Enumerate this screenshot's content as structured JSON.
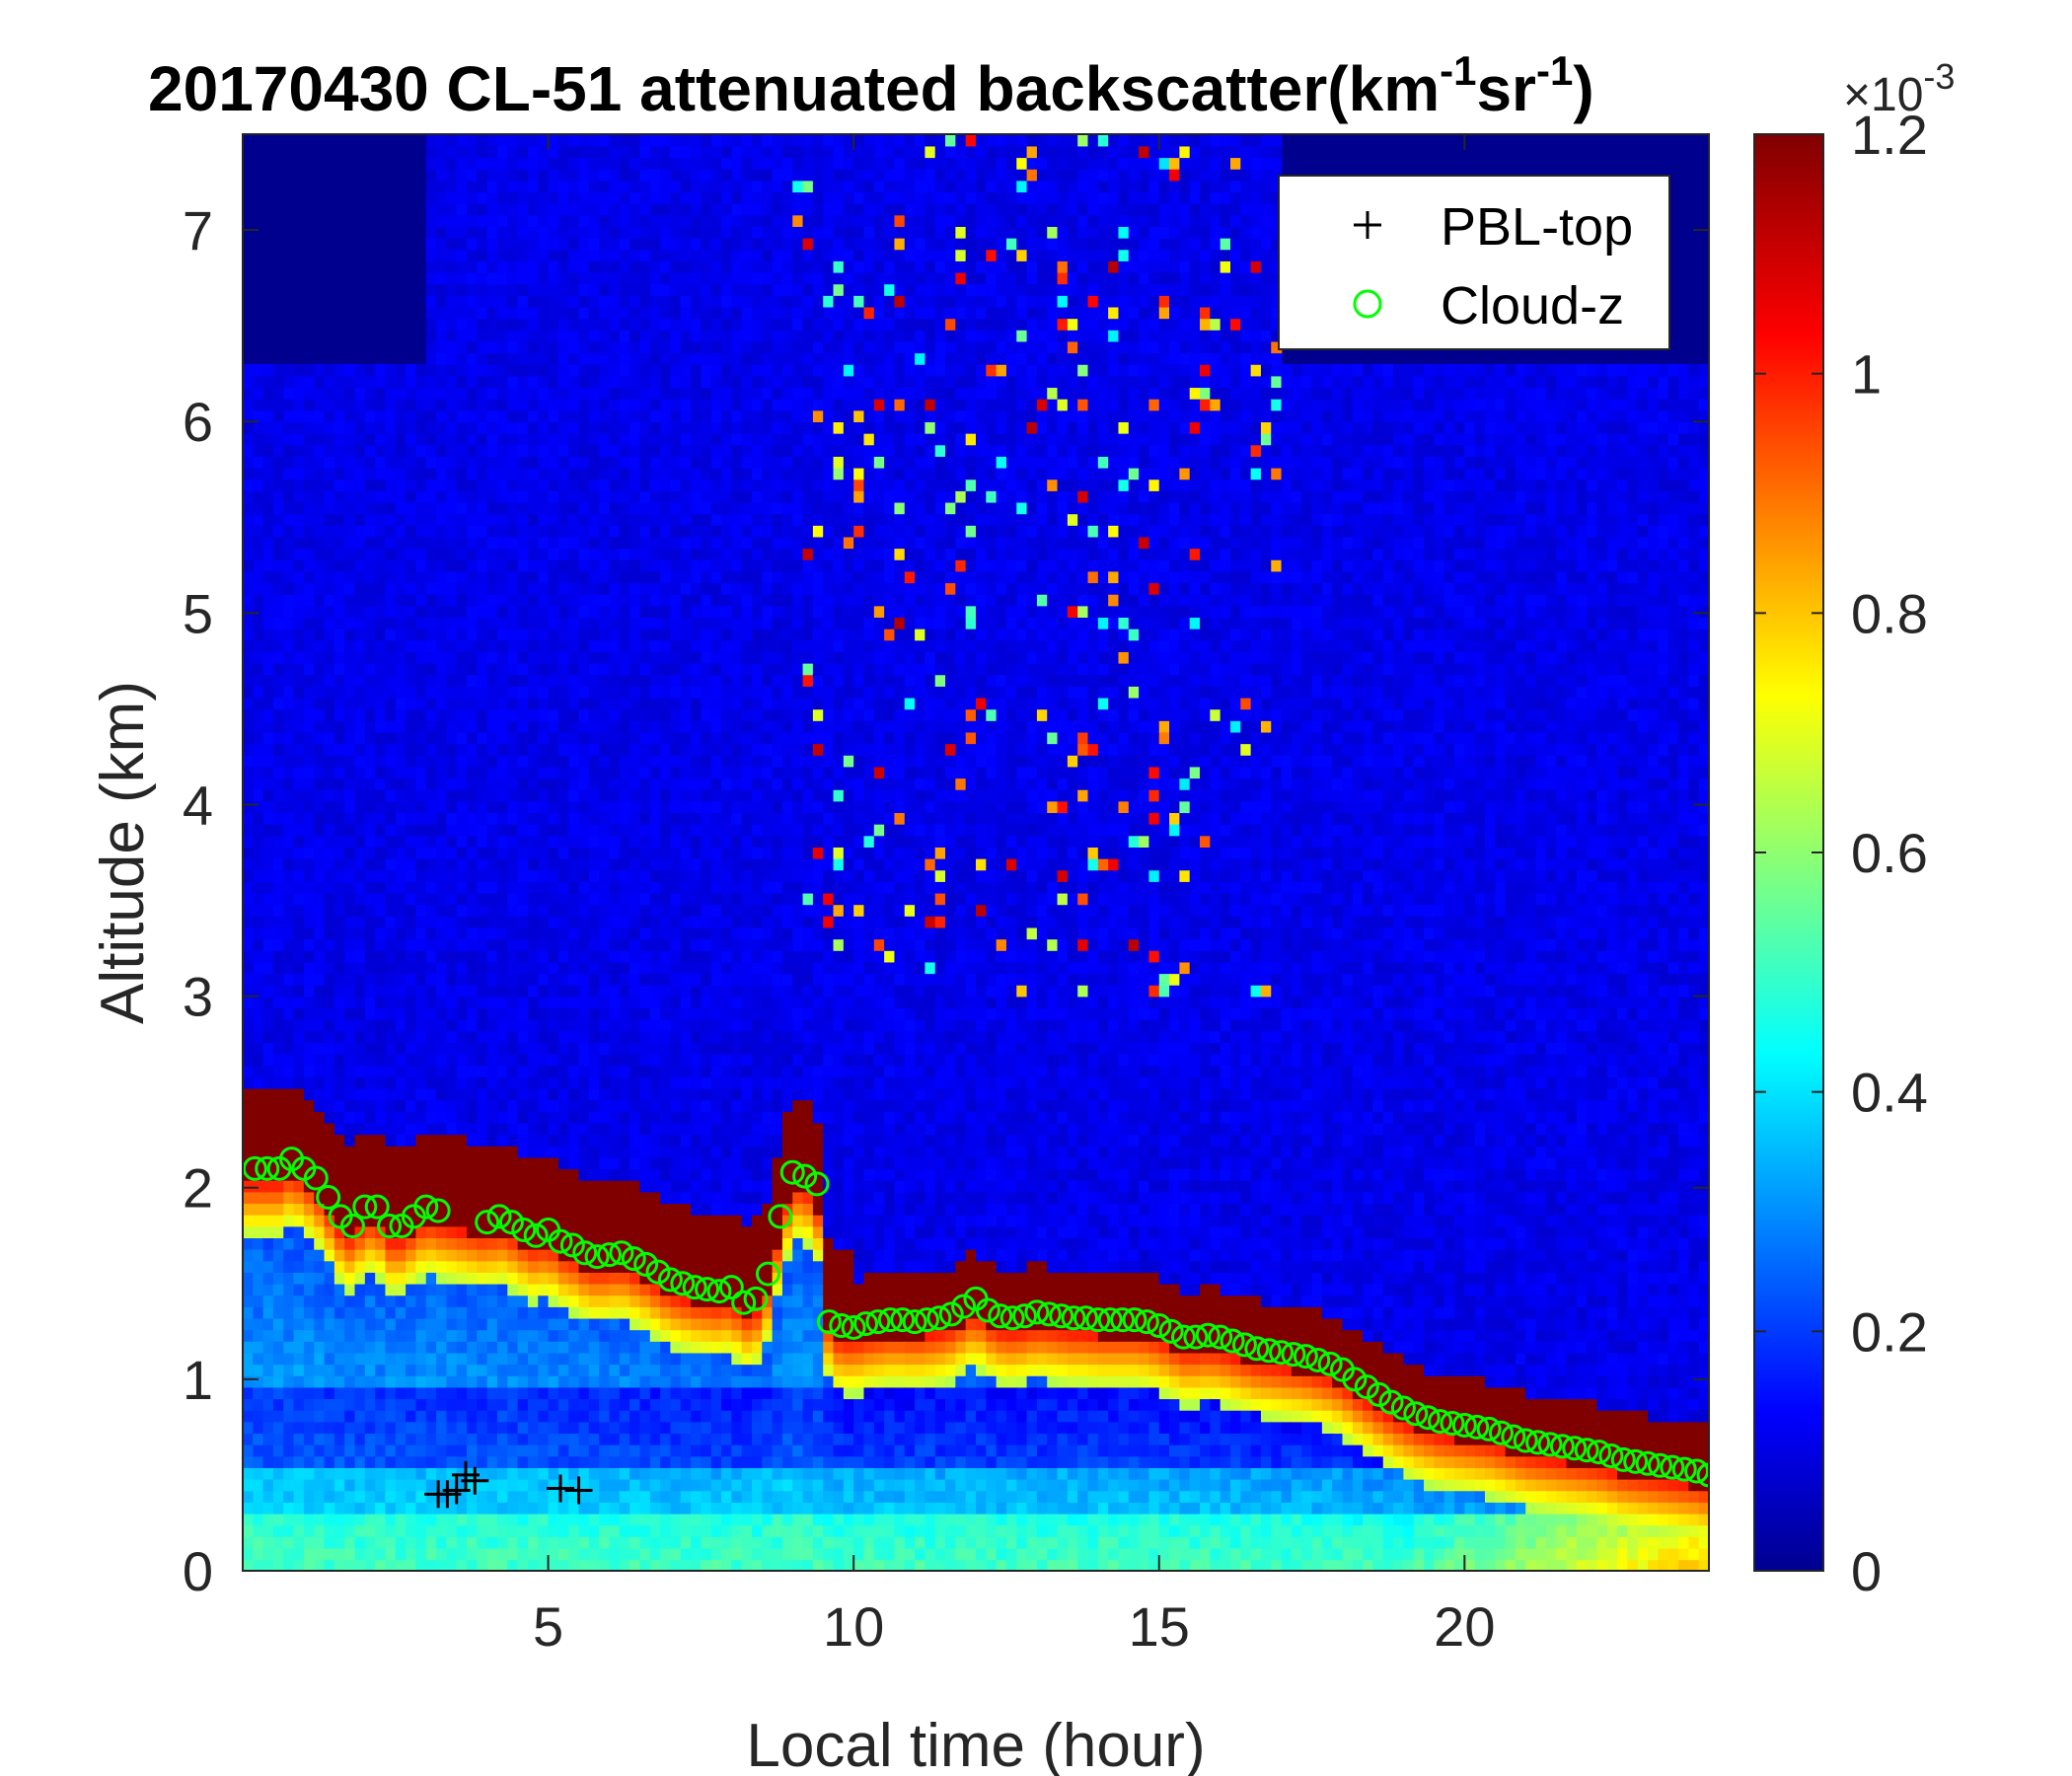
{
  "chart_data": {
    "type": "heatmap",
    "title_parts": {
      "date": "20170430",
      "main": "CL-51 attenuated backscatter(km",
      "sup1": "-1",
      "mid": "sr",
      "sup2": "-1",
      "end": ")"
    },
    "xlabel": "Local time (hour)",
    "ylabel": "Altitude (km)",
    "xlim": [
      0,
      24
    ],
    "ylim": [
      0,
      7.5
    ],
    "xticks": [
      "5",
      "10",
      "15",
      "20"
    ],
    "yticks": [
      "0",
      "1",
      "2",
      "3",
      "4",
      "5",
      "6",
      "7"
    ],
    "colorbar": {
      "colormap": "jet",
      "range": [
        0,
        0.0012
      ],
      "tick_labels": [
        "0",
        "0.2",
        "0.4",
        "0.6",
        "0.8",
        "1",
        "1.2"
      ],
      "exponent_base": "×10",
      "exponent_power": "-3"
    },
    "legend": {
      "position": "top-right",
      "entries": [
        {
          "label": "PBL-top",
          "marker": "plus",
          "color": "#000000"
        },
        {
          "label": "Cloud-z",
          "marker": "circle",
          "color": "#00ff00"
        }
      ]
    },
    "series": [
      {
        "name": "PBL-top",
        "marker": "plus",
        "x": [
          3.2,
          3.35,
          3.5,
          3.65,
          3.8,
          5.2,
          5.5
        ],
        "y": [
          0.4,
          0.4,
          0.42,
          0.5,
          0.47,
          0.43,
          0.42
        ]
      },
      {
        "name": "Cloud-z",
        "marker": "circle",
        "x": [
          0.2,
          0.4,
          0.6,
          0.8,
          1.0,
          1.2,
          1.4,
          1.6,
          1.8,
          2.0,
          2.2,
          2.4,
          2.6,
          2.8,
          3.0,
          3.2,
          4.0,
          4.2,
          4.4,
          4.6,
          4.8,
          5.0,
          5.2,
          5.4,
          5.6,
          5.8,
          6.0,
          6.2,
          6.4,
          6.6,
          6.8,
          7.0,
          7.2,
          7.4,
          7.6,
          7.8,
          8.0,
          8.2,
          8.4,
          8.6,
          8.8,
          9.0,
          9.2,
          9.4,
          9.6,
          9.8,
          10.0,
          10.2,
          10.4,
          10.6,
          10.8,
          11.0,
          11.2,
          11.4,
          11.6,
          11.8,
          12.0,
          12.2,
          12.4,
          12.6,
          12.8,
          13.0,
          13.2,
          13.4,
          13.6,
          13.8,
          14.0,
          14.2,
          14.4,
          14.6,
          14.8,
          15.0,
          15.2,
          15.4,
          15.6,
          15.8,
          16.0,
          16.2,
          16.4,
          16.6,
          16.8,
          17.0,
          17.2,
          17.4,
          17.6,
          17.8,
          18.0,
          18.2,
          18.4,
          18.6,
          18.8,
          19.0,
          19.2,
          19.4,
          19.6,
          19.8,
          20.0,
          20.2,
          20.4,
          20.6,
          20.8,
          21.0,
          21.2,
          21.4,
          21.6,
          21.8,
          22.0,
          22.2,
          22.4,
          22.6,
          22.8,
          23.0,
          23.2,
          23.4,
          23.6,
          23.8,
          24.0
        ],
        "y": [
          2.1,
          2.1,
          2.1,
          2.15,
          2.1,
          2.05,
          1.95,
          1.85,
          1.8,
          1.9,
          1.9,
          1.8,
          1.8,
          1.85,
          1.9,
          1.88,
          1.82,
          1.85,
          1.82,
          1.78,
          1.75,
          1.78,
          1.72,
          1.7,
          1.66,
          1.64,
          1.65,
          1.66,
          1.63,
          1.6,
          1.56,
          1.52,
          1.5,
          1.48,
          1.47,
          1.46,
          1.48,
          1.4,
          1.42,
          1.55,
          1.85,
          2.08,
          2.06,
          2.02,
          1.3,
          1.28,
          1.27,
          1.29,
          1.3,
          1.31,
          1.31,
          1.3,
          1.31,
          1.32,
          1.34,
          1.38,
          1.42,
          1.36,
          1.33,
          1.32,
          1.33,
          1.35,
          1.34,
          1.33,
          1.32,
          1.32,
          1.31,
          1.31,
          1.31,
          1.31,
          1.3,
          1.28,
          1.25,
          1.22,
          1.22,
          1.23,
          1.22,
          1.2,
          1.18,
          1.16,
          1.15,
          1.14,
          1.13,
          1.12,
          1.1,
          1.08,
          1.05,
          1.0,
          0.96,
          0.92,
          0.88,
          0.85,
          0.82,
          0.8,
          0.78,
          0.77,
          0.76,
          0.75,
          0.74,
          0.72,
          0.7,
          0.68,
          0.67,
          0.66,
          0.65,
          0.64,
          0.63,
          0.62,
          0.6,
          0.58,
          0.57,
          0.56,
          0.55,
          0.54,
          0.53,
          0.52,
          0.5
        ]
      }
    ]
  }
}
